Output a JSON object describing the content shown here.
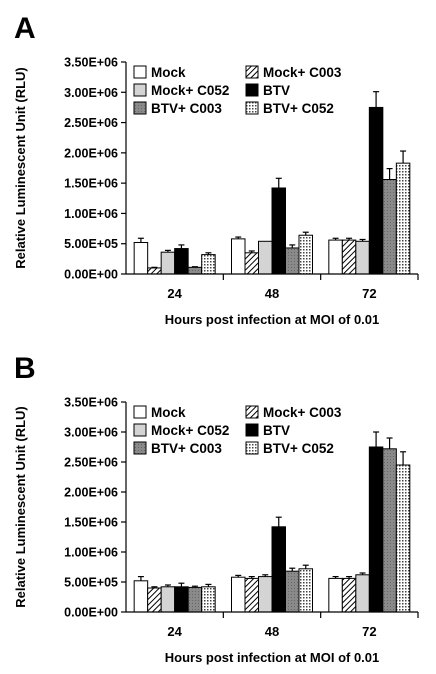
{
  "chart_data": [
    {
      "panel_label": "A",
      "type": "bar",
      "categories": [
        "24",
        "48",
        "72"
      ],
      "xlabel": "Hours post infection at MOI of 0.01",
      "ylabel": "Relative Luminescent Unit (RLU)",
      "ylim": [
        0,
        3500000
      ],
      "yticks": [
        "0.00E+00",
        "5.00E+05",
        "1.00E+06",
        "1.50E+06",
        "2.00E+06",
        "2.50E+06",
        "3.00E+06",
        "3.50E+06"
      ],
      "ytick_values": [
        0,
        500000,
        1000000,
        1500000,
        2000000,
        2500000,
        3000000,
        3500000
      ],
      "grid": false,
      "legend_position": "top",
      "series": [
        {
          "name": "Mock",
          "pattern": "white",
          "values": [
            520000,
            580000,
            560000
          ],
          "errors": [
            70000,
            30000,
            30000
          ]
        },
        {
          "name": "Mock+ C003",
          "pattern": "diagonal",
          "values": [
            100000,
            350000,
            560000
          ],
          "errors": [
            10000,
            30000,
            30000
          ]
        },
        {
          "name": "Mock+ C052",
          "pattern": "lightgray",
          "values": [
            360000,
            540000,
            540000
          ],
          "errors": [
            30000,
            0,
            30000
          ]
        },
        {
          "name": "BTV",
          "pattern": "black",
          "values": [
            420000,
            1420000,
            2750000
          ],
          "errors": [
            60000,
            160000,
            260000
          ]
        },
        {
          "name": "BTV+ C003",
          "pattern": "gray",
          "values": [
            110000,
            430000,
            1560000
          ],
          "errors": [
            10000,
            50000,
            180000
          ]
        },
        {
          "name": "BTV+ C052",
          "pattern": "dotted",
          "values": [
            320000,
            640000,
            1830000
          ],
          "errors": [
            30000,
            50000,
            200000
          ]
        }
      ]
    },
    {
      "panel_label": "B",
      "type": "bar",
      "categories": [
        "24",
        "48",
        "72"
      ],
      "xlabel": "Hours post infection at MOI of 0.01",
      "ylabel": "Relative Luminescent Unit (RLU)",
      "ylim": [
        0,
        3500000
      ],
      "yticks": [
        "0.00E+00",
        "5.00E+05",
        "1.00E+06",
        "1.50E+06",
        "2.00E+06",
        "2.50E+06",
        "3.00E+06",
        "3.50E+06"
      ],
      "ytick_values": [
        0,
        500000,
        1000000,
        1500000,
        2000000,
        2500000,
        3000000,
        3500000
      ],
      "grid": false,
      "legend_position": "top",
      "series": [
        {
          "name": "Mock",
          "pattern": "white",
          "values": [
            520000,
            580000,
            560000
          ],
          "errors": [
            70000,
            30000,
            30000
          ]
        },
        {
          "name": "Mock+ C003",
          "pattern": "diagonal",
          "values": [
            400000,
            560000,
            560000
          ],
          "errors": [
            20000,
            30000,
            30000
          ]
        },
        {
          "name": "Mock+ C052",
          "pattern": "lightgray",
          "values": [
            420000,
            590000,
            620000
          ],
          "errors": [
            30000,
            30000,
            30000
          ]
        },
        {
          "name": "BTV",
          "pattern": "black",
          "values": [
            420000,
            1420000,
            2750000
          ],
          "errors": [
            60000,
            160000,
            250000
          ]
        },
        {
          "name": "BTV+ C003",
          "pattern": "gray",
          "values": [
            410000,
            680000,
            2720000
          ],
          "errors": [
            20000,
            50000,
            180000
          ]
        },
        {
          "name": "BTV+ C052",
          "pattern": "dotted",
          "values": [
            420000,
            720000,
            2450000
          ],
          "errors": [
            40000,
            60000,
            220000
          ]
        }
      ]
    }
  ]
}
